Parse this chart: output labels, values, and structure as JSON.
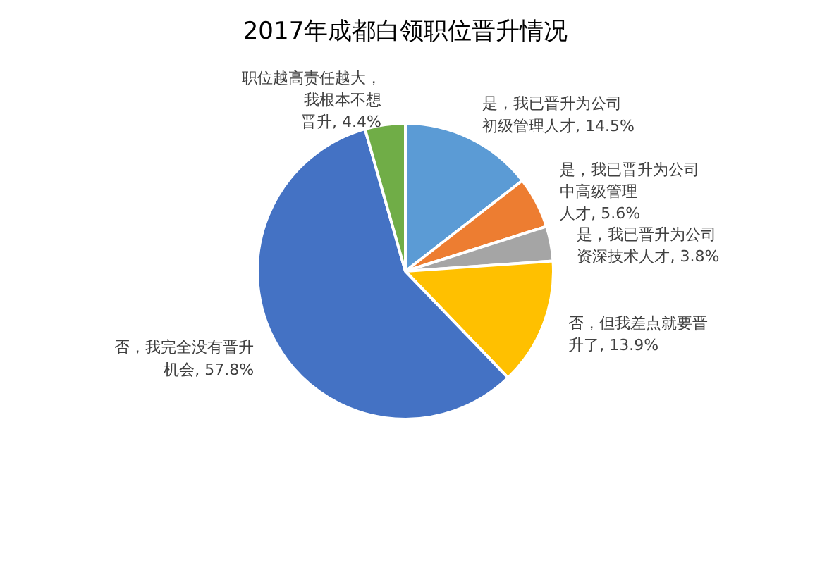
{
  "chart_data": {
    "type": "pie",
    "title": "2017年成都白领职位晋升情况",
    "categories": [
      "是，我已晋升为公司初级管理人才",
      "是，我已晋升为公司中高级管理人才",
      "是，我已晋升为公司资深技术人才",
      "否，但我差点就要晋升了",
      "否，我完全没有晋升机会",
      "职位越高责任越大，我根本不想晋升"
    ],
    "value_labels": [
      "14.5%",
      "5.6%",
      "3.8%",
      "13.9%",
      "57.8%",
      "4.4%"
    ],
    "values": [
      14.5,
      5.6,
      3.8,
      13.9,
      57.8,
      4.4
    ],
    "colors": [
      "#5b9bd5",
      "#ed7d31",
      "#a5a5a5",
      "#ffc000",
      "#4472c4",
      "#70ad47"
    ],
    "data_labels": true,
    "legend": false
  }
}
